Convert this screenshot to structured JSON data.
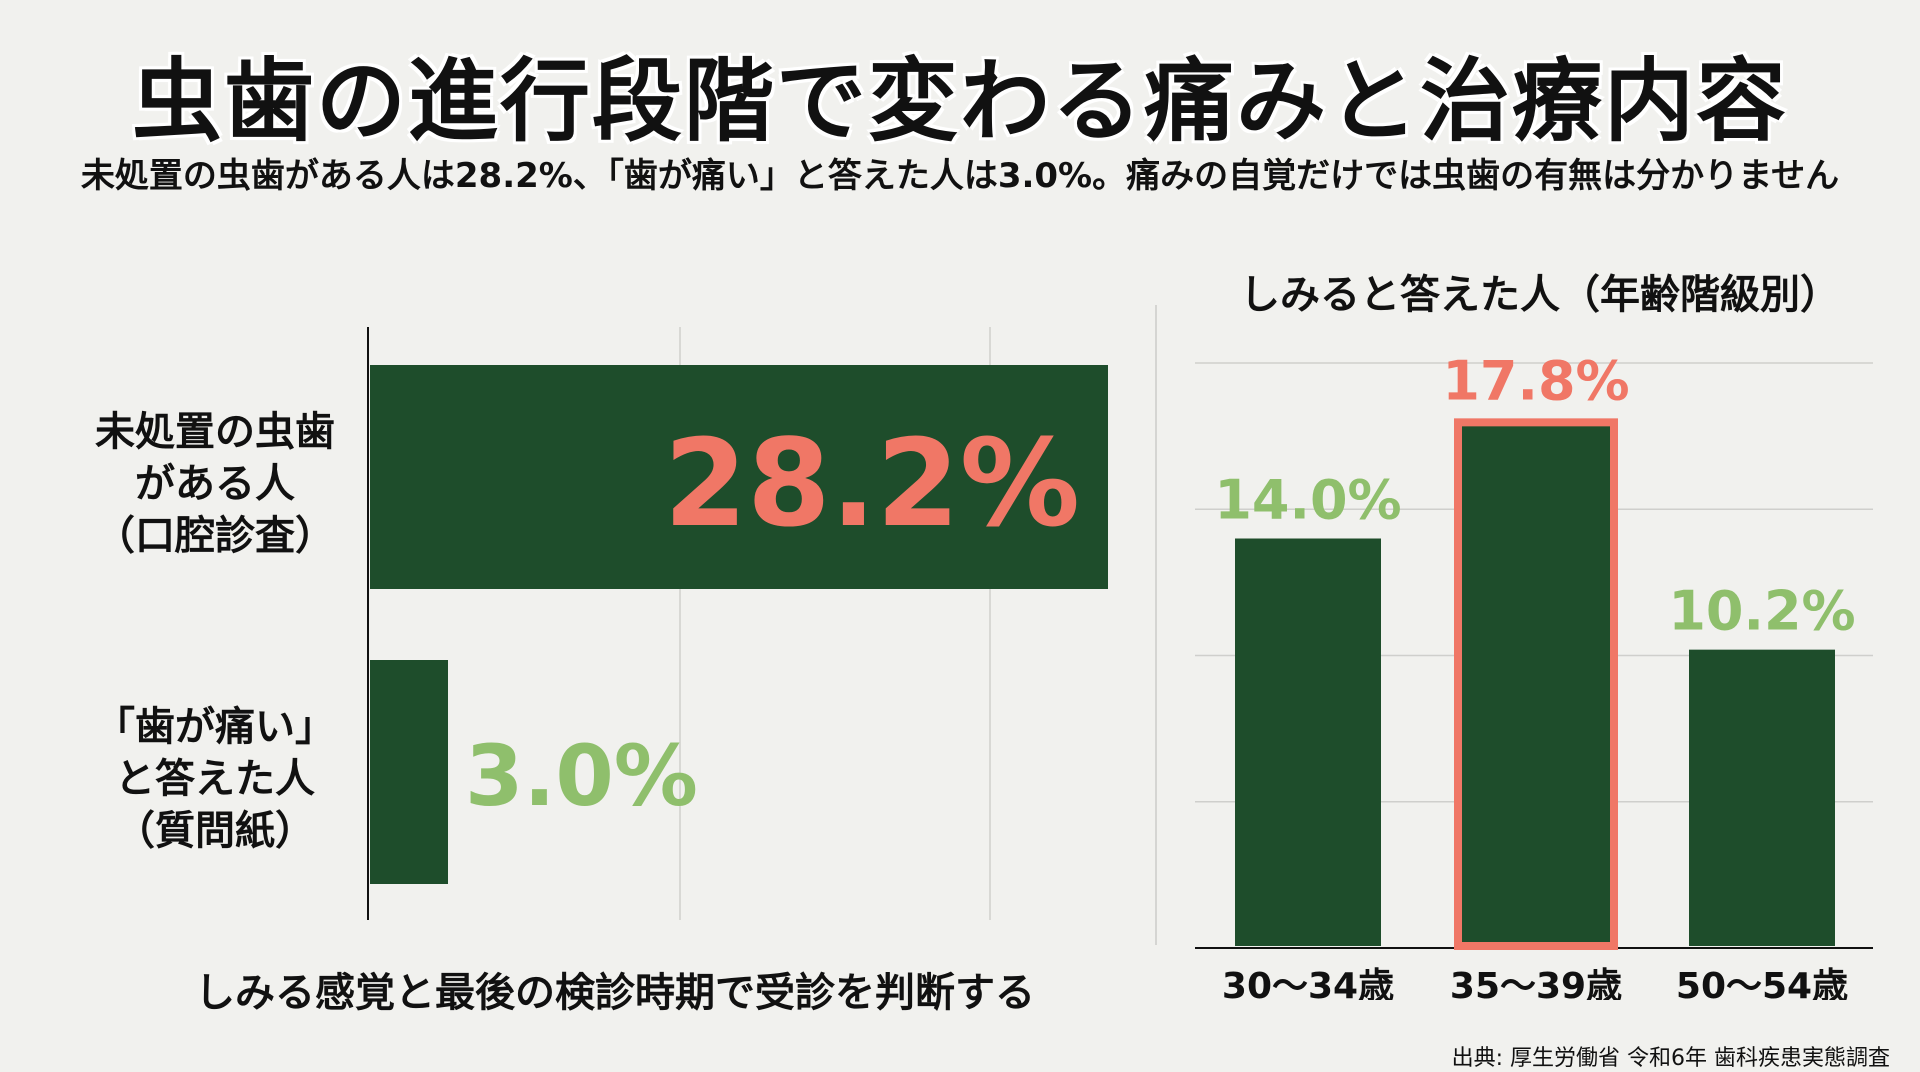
{
  "header": {
    "title": "虫歯の進行段階で変わる痛みと治療内容",
    "subtitle": "未処置の虫歯がある人は28.2%、「歯が痛い」と答えた人は3.0%。痛みの自覚だけでは虫歯の有無は分かりません"
  },
  "footer": {
    "note": "しみる感覚と最後の検診時期で受診を判断する",
    "source": "出典: 厚生労働省 令和6年 歯科疾患実態調査"
  },
  "colors": {
    "bar": "#1e4d2b",
    "highlight": "#f07766",
    "label_green": "#8fbf6c",
    "grid": "#cfcfcc"
  },
  "chart_data": [
    {
      "type": "bar",
      "orientation": "horizontal",
      "categories": [
        [
          "未処置の虫歯",
          "がある人",
          "（口腔診査）"
        ],
        [
          "「歯が痛い」",
          "と答えた人",
          "（質問紙）"
        ]
      ],
      "values": [
        28.2,
        3.0
      ],
      "value_labels": [
        "28.2%",
        "3.0%"
      ],
      "xlim": [
        0,
        30
      ],
      "grid": true
    },
    {
      "type": "bar",
      "orientation": "vertical",
      "title": "しみると答えた人（年齢階級別）",
      "categories": [
        "30〜34歳",
        "35〜39歳",
        "50〜54歳"
      ],
      "values": [
        14.0,
        17.8,
        10.2
      ],
      "value_labels": [
        "14.0%",
        "17.8%",
        "10.2%"
      ],
      "highlight_index": 1,
      "ylim": [
        0,
        20
      ],
      "grid": true
    }
  ]
}
